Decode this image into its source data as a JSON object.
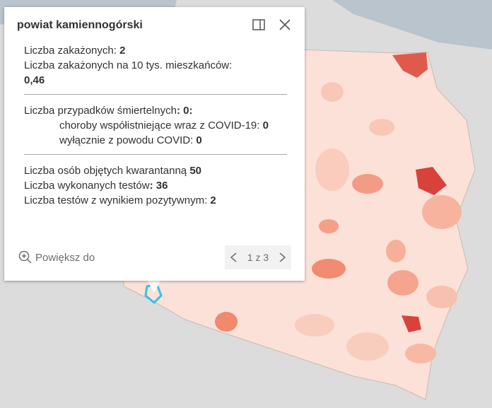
{
  "popup": {
    "title": "powiat kamiennogórski",
    "lines": [
      {
        "label": "Liczba zakażonych:",
        "value": "2"
      },
      {
        "label": "Liczba zakażonych na 10 tys. mieszkańców:",
        "value": "0,46"
      },
      {
        "label": "Liczba przypadków śmiertelnych",
        "value": ": 0:"
      },
      {
        "label": "choroby współistniejące wraz z COVID-19:",
        "value": "0"
      },
      {
        "label": "wyłącznie z powodu COVID:",
        "value": "0"
      },
      {
        "label": "Liczba osób objętych kwarantanną",
        "value": "50"
      },
      {
        "label": "Liczba wykonanych testów",
        "value": ": 36"
      },
      {
        "label": "Liczba testów z wynikiem pozytywnym:",
        "value": "2"
      }
    ],
    "zoom": "Powiększ do",
    "pager": "1 z 3"
  }
}
